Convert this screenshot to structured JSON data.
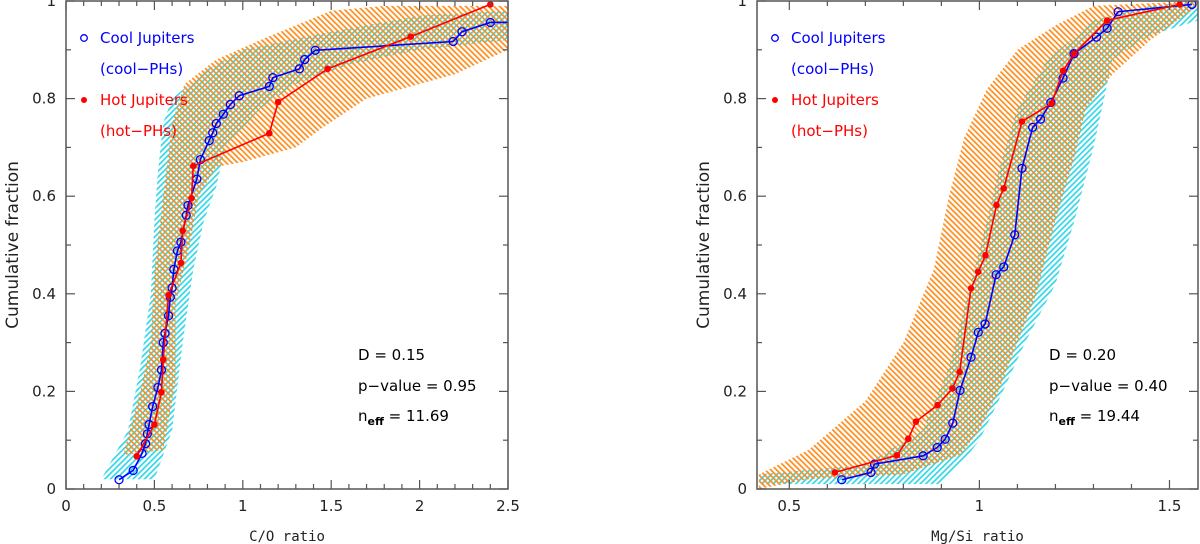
{
  "chart_data": [
    {
      "type": "line",
      "xlabel": "C/O ratio",
      "ylabel": "Cumulative fraction",
      "xlim": [
        0,
        2.5
      ],
      "ylim": [
        0,
        1
      ],
      "xticks": [
        "0",
        "0.5",
        "1",
        "1.5",
        "2",
        "2.5"
      ],
      "xtick_values": [
        0,
        0.5,
        1,
        1.5,
        2,
        2.5
      ],
      "yticks": [
        "0",
        "0.2",
        "0.4",
        "0.6",
        "0.8",
        "1"
      ],
      "ytick_values": [
        0,
        0.2,
        0.4,
        0.6,
        0.8,
        1
      ],
      "legend": [
        {
          "label": "Cool Jupiters",
          "sublabel": "(cool−PHs)",
          "color": "#0000ff",
          "marker": "open-circle"
        },
        {
          "label": "Hot Jupiters",
          "sublabel": "(hot−PHs)",
          "color": "#ff0000",
          "marker": "filled-circle"
        }
      ],
      "legend_position": "top-left",
      "stats": {
        "D": "D = 0.15",
        "p": "p−value = 0.95",
        "neff_prefix": "n",
        "neff_sub": "eff",
        "neff_value": " = 11.69"
      },
      "series": [
        {
          "name": "Cool Jupiters",
          "color": "#0000ff",
          "marker": "open",
          "x": [
            0.3,
            0.38,
            0.43,
            0.45,
            0.46,
            0.47,
            0.49,
            0.52,
            0.54,
            0.55,
            0.56,
            0.58,
            0.59,
            0.6,
            0.61,
            0.63,
            0.65,
            0.68,
            0.69,
            0.74,
            0.76,
            0.81,
            0.83,
            0.85,
            0.89,
            0.93,
            0.98,
            1.15,
            1.17,
            1.32,
            1.35,
            1.41,
            2.19,
            2.24,
            2.4,
            2.5
          ],
          "y": [
            0.019,
            0.038,
            0.073,
            0.093,
            0.113,
            0.132,
            0.169,
            0.208,
            0.244,
            0.3,
            0.319,
            0.355,
            0.393,
            0.412,
            0.45,
            0.488,
            0.506,
            0.561,
            0.581,
            0.635,
            0.675,
            0.714,
            0.73,
            0.749,
            0.768,
            0.788,
            0.806,
            0.825,
            0.843,
            0.861,
            0.88,
            0.899,
            0.917,
            0.937,
            0.956,
            0.956
          ],
          "last_is_edge": true
        },
        {
          "name": "Hot Jupiters",
          "color": "#ff0000",
          "marker": "filled",
          "x": [
            0.4,
            0.5,
            0.54,
            0.55,
            0.58,
            0.65,
            0.66,
            0.71,
            0.72,
            1.15,
            1.2,
            1.48,
            1.95,
            2.4
          ],
          "y": [
            0.067,
            0.132,
            0.198,
            0.265,
            0.397,
            0.463,
            0.529,
            0.596,
            0.662,
            0.729,
            0.793,
            0.861,
            0.927,
            0.993
          ]
        }
      ],
      "bands": [
        {
          "color": "#33d6e6",
          "x": [
            0.2,
            0.35,
            0.42,
            0.48,
            0.5,
            0.52,
            0.55,
            0.6,
            0.8,
            1.0,
            1.4,
            2.0,
            2.5,
            2.5,
            2.0,
            1.6,
            1.3,
            1.1,
            0.9,
            0.85,
            0.78,
            0.72,
            0.66,
            0.6,
            0.5
          ],
          "y": [
            0.02,
            0.12,
            0.25,
            0.4,
            0.55,
            0.65,
            0.75,
            0.8,
            0.86,
            0.9,
            0.93,
            0.97,
            0.98,
            0.92,
            0.9,
            0.87,
            0.83,
            0.78,
            0.7,
            0.62,
            0.55,
            0.45,
            0.3,
            0.12,
            0.02
          ]
        },
        {
          "color": "#ff8c1a",
          "x": [
            0.33,
            0.42,
            0.48,
            0.5,
            0.55,
            0.6,
            0.67,
            0.85,
            1.1,
            1.5,
            1.8,
            2.5,
            2.5,
            2.2,
            1.7,
            1.45,
            1.3,
            1.0,
            0.85,
            0.75,
            0.7,
            0.62,
            0.62,
            0.55,
            0.33
          ],
          "y": [
            0.08,
            0.2,
            0.3,
            0.45,
            0.6,
            0.75,
            0.83,
            0.88,
            0.92,
            0.98,
            0.99,
            0.99,
            0.9,
            0.85,
            0.8,
            0.74,
            0.7,
            0.67,
            0.66,
            0.6,
            0.5,
            0.38,
            0.22,
            0.08,
            0.07
          ]
        }
      ]
    },
    {
      "type": "line",
      "xlabel": "Mg/Si ratio",
      "ylabel": "Cumulative fraction",
      "xlim": [
        0.415,
        1.575
      ],
      "ylim": [
        0,
        1
      ],
      "xticks": [
        "0.5",
        "1",
        "1.5"
      ],
      "xtick_values": [
        0.5,
        1,
        1.5
      ],
      "yticks": [
        "0",
        "0.2",
        "0.4",
        "0.6",
        "0.8",
        "1"
      ],
      "ytick_values": [
        0,
        0.2,
        0.4,
        0.6,
        0.8,
        1
      ],
      "legend": [
        {
          "label": "Cool Jupiters",
          "sublabel": "(cool−PHs)",
          "color": "#0000ff",
          "marker": "open-circle"
        },
        {
          "label": "Hot Jupiters",
          "sublabel": "(hot−PHs)",
          "color": "#ff0000",
          "marker": "filled-circle"
        }
      ],
      "legend_position": "top-left",
      "stats": {
        "D": "D = 0.20",
        "p": "p−value = 0.40",
        "neff_prefix": "n",
        "neff_sub": "eff",
        "neff_value": " = 19.44"
      },
      "series": [
        {
          "name": "Cool Jupiters",
          "color": "#0000ff",
          "marker": "open",
          "x": [
            0.638,
            0.715,
            0.724,
            0.852,
            0.889,
            0.91,
            0.93,
            0.949,
            0.978,
            0.997,
            1.015,
            1.044,
            1.064,
            1.093,
            1.112,
            1.14,
            1.161,
            1.188,
            1.22,
            1.249,
            1.308,
            1.336,
            1.365,
            1.559
          ],
          "y": [
            0.019,
            0.034,
            0.051,
            0.068,
            0.085,
            0.102,
            0.135,
            0.202,
            0.27,
            0.321,
            0.338,
            0.439,
            0.455,
            0.521,
            0.657,
            0.741,
            0.758,
            0.792,
            0.842,
            0.892,
            0.926,
            0.944,
            0.978,
            0.993
          ]
        },
        {
          "name": "Hot Jupiters",
          "color": "#ff0000",
          "marker": "filled",
          "x": [
            0.62,
            0.783,
            0.813,
            0.833,
            0.89,
            0.929,
            0.948,
            0.978,
            0.997,
            1.016,
            1.045,
            1.064,
            1.112,
            1.19,
            1.22,
            1.249,
            1.336,
            1.527
          ],
          "y": [
            0.034,
            0.069,
            0.103,
            0.138,
            0.172,
            0.206,
            0.24,
            0.411,
            0.445,
            0.479,
            0.582,
            0.616,
            0.753,
            0.79,
            0.857,
            0.892,
            0.96,
            0.993
          ]
        }
      ],
      "bands": [
        {
          "color": "#33d6e6",
          "x": [
            0.42,
            0.7,
            0.85,
            0.92,
            0.97,
            1.02,
            1.05,
            1.1,
            1.18,
            1.3,
            1.45,
            1.575,
            1.575,
            1.45,
            1.35,
            1.3,
            1.25,
            1.2,
            1.12,
            1.05,
            1.0,
            0.95,
            0.9,
            0.42
          ],
          "y": [
            0.03,
            0.05,
            0.12,
            0.25,
            0.4,
            0.55,
            0.65,
            0.78,
            0.88,
            0.96,
            0.99,
            1.0,
            0.96,
            0.93,
            0.88,
            0.7,
            0.55,
            0.42,
            0.3,
            0.18,
            0.1,
            0.05,
            0.01,
            0.01
          ]
        },
        {
          "color": "#ff8c1a",
          "x": [
            0.42,
            0.55,
            0.7,
            0.8,
            0.88,
            0.92,
            0.96,
            1.02,
            1.1,
            1.2,
            1.3,
            1.575,
            1.575,
            1.45,
            1.35,
            1.28,
            1.25,
            1.2,
            1.15,
            1.1,
            1.05,
            1.0,
            0.95,
            0.8,
            0.55,
            0.42
          ],
          "y": [
            0.03,
            0.08,
            0.18,
            0.3,
            0.45,
            0.6,
            0.72,
            0.82,
            0.9,
            0.95,
            0.99,
            1.0,
            0.99,
            0.92,
            0.85,
            0.78,
            0.68,
            0.55,
            0.4,
            0.3,
            0.2,
            0.12,
            0.07,
            0.03,
            0.02,
            0.0
          ]
        }
      ]
    }
  ]
}
